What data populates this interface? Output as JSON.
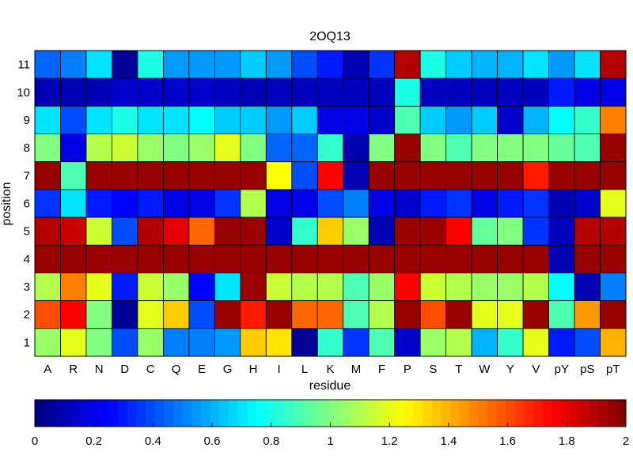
{
  "chart_data": {
    "type": "heatmap",
    "title": "2OQ13",
    "xlabel": "residue",
    "ylabel": "position",
    "x_categories": [
      "A",
      "R",
      "N",
      "D",
      "C",
      "Q",
      "E",
      "G",
      "H",
      "I",
      "L",
      "K",
      "M",
      "F",
      "P",
      "S",
      "T",
      "W",
      "Y",
      "V",
      "pY",
      "pS",
      "pT"
    ],
    "y_categories": [
      "11",
      "10",
      "9",
      "8",
      "7",
      "6",
      "5",
      "4",
      "3",
      "2",
      "1"
    ],
    "values": [
      [
        0.45,
        0.5,
        0.7,
        0.05,
        0.8,
        0.55,
        0.55,
        0.55,
        0.65,
        0.55,
        0.4,
        0.3,
        0.1,
        0.35,
        1.9,
        0.8,
        0.65,
        0.6,
        0.6,
        0.7,
        0.55,
        0.7,
        1.9
      ],
      [
        0.1,
        0.1,
        0.1,
        0.15,
        0.15,
        0.15,
        0.15,
        0.12,
        0.1,
        0.12,
        0.12,
        0.12,
        0.12,
        0.12,
        0.8,
        0.12,
        0.12,
        0.12,
        0.12,
        0.12,
        0.3,
        0.2,
        0.2
      ],
      [
        0.7,
        0.4,
        0.7,
        0.8,
        0.7,
        0.7,
        0.75,
        0.65,
        0.65,
        0.55,
        0.65,
        0.2,
        0.2,
        0.15,
        0.9,
        0.65,
        0.55,
        0.65,
        0.15,
        0.6,
        0.75,
        0.85,
        1.5
      ],
      [
        1.0,
        0.2,
        1.1,
        1.15,
        1.05,
        1.0,
        1.05,
        1.2,
        1.0,
        0.45,
        0.45,
        0.85,
        0.1,
        1.0,
        1.95,
        1.0,
        0.9,
        1.0,
        1.0,
        1.0,
        0.95,
        0.9,
        1.95
      ],
      [
        1.95,
        0.9,
        1.95,
        1.95,
        1.95,
        1.95,
        1.95,
        1.95,
        1.95,
        1.25,
        0.4,
        1.75,
        0.1,
        1.95,
        1.95,
        1.95,
        1.95,
        1.95,
        1.95,
        1.7,
        1.95,
        1.95,
        1.95
      ],
      [
        0.35,
        0.7,
        0.3,
        0.25,
        0.3,
        0.2,
        0.2,
        0.35,
        1.1,
        0.2,
        0.2,
        0.4,
        0.5,
        0.2,
        0.15,
        0.3,
        0.35,
        0.2,
        0.3,
        0.35,
        0.1,
        0.15,
        1.2
      ],
      [
        1.9,
        1.85,
        1.15,
        0.4,
        1.9,
        1.8,
        1.55,
        1.95,
        1.95,
        0.15,
        0.85,
        1.35,
        1.05,
        0.1,
        1.95,
        1.95,
        1.75,
        0.95,
        1.0,
        0.35,
        0.12,
        1.9,
        1.9
      ],
      [
        1.95,
        1.95,
        1.95,
        1.95,
        1.95,
        1.95,
        1.95,
        1.95,
        1.95,
        1.95,
        1.95,
        1.95,
        1.95,
        1.95,
        1.95,
        1.95,
        1.95,
        1.95,
        1.95,
        1.95,
        0.1,
        1.95,
        1.95
      ],
      [
        1.1,
        1.5,
        1.2,
        0.3,
        1.15,
        1.05,
        0.25,
        0.7,
        1.95,
        1.15,
        1.1,
        1.1,
        0.9,
        1.05,
        1.75,
        1.15,
        1.1,
        1.05,
        1.05,
        1.1,
        0.75,
        0.1,
        0.5
      ],
      [
        1.6,
        1.75,
        1.0,
        0.05,
        1.2,
        1.35,
        0.4,
        1.95,
        1.7,
        1.95,
        1.55,
        1.55,
        0.9,
        1.1,
        1.95,
        1.6,
        1.95,
        1.2,
        1.2,
        1.95,
        0.9,
        1.45,
        1.95
      ],
      [
        1.05,
        1.2,
        1.0,
        0.4,
        1.05,
        0.5,
        0.5,
        0.55,
        1.35,
        1.3,
        0.05,
        0.85,
        0.35,
        0.9,
        0.15,
        1.05,
        1.1,
        0.6,
        0.85,
        1.2,
        0.3,
        0.4,
        1.4
      ]
    ],
    "colorbar": {
      "ticks": [
        "0",
        "0.2",
        "0.4",
        "0.6",
        "0.8",
        "1",
        "1.2",
        "1.4",
        "1.6",
        "1.8",
        "2"
      ],
      "range": [
        0,
        2
      ]
    },
    "colormap": "jet",
    "grid": true
  }
}
